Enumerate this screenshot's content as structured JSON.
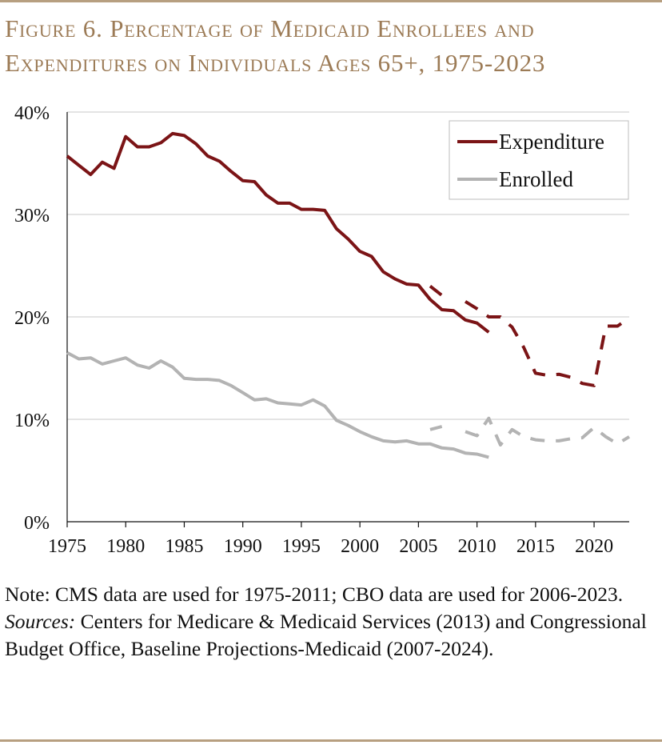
{
  "figure": {
    "title_line1": "Figure 6. Percentage of Medicaid Enrollees and",
    "title_line2": "Expenditures on Individuals Ages 65+, 1975-2023",
    "note": "Note: CMS data are used for 1975-2011; CBO data are used for 2006-2023.",
    "sources_label": "Sources:",
    "sources_text": " Centers for Medicare & Medicaid Services (2013) and Congressional Budget Office, Baseline Projections-Medicaid (2007-2024).",
    "colors": {
      "expenditure": "#7b1416",
      "enrolled": "#b3b3b3",
      "title": "#9c7b56",
      "rule": "#b79f80",
      "grid": "#c8c8c8"
    }
  },
  "chart_data": {
    "type": "line",
    "ylim": [
      0,
      40
    ],
    "xlim": [
      1975,
      2023
    ],
    "yticks": [
      0,
      10,
      20,
      30,
      40
    ],
    "ytick_labels": [
      "0%",
      "10%",
      "20%",
      "30%",
      "40%"
    ],
    "xticks": [
      1975,
      1980,
      1985,
      1990,
      1995,
      2000,
      2005,
      2010,
      2015,
      2020
    ],
    "xtick_labels": [
      "1975",
      "1980",
      "1985",
      "1990",
      "1995",
      "2000",
      "2005",
      "2010",
      "2015",
      "2020"
    ],
    "legend": {
      "position": "top-right",
      "entries": [
        "Expenditure",
        "Enrolled"
      ]
    },
    "series": [
      {
        "name": "Expenditure",
        "source": "CMS",
        "style": "solid",
        "x": [
          1975,
          1976,
          1977,
          1978,
          1979,
          1980,
          1981,
          1982,
          1983,
          1984,
          1985,
          1986,
          1987,
          1988,
          1989,
          1990,
          1991,
          1992,
          1993,
          1994,
          1995,
          1996,
          1997,
          1998,
          1999,
          2000,
          2001,
          2002,
          2003,
          2004,
          2005,
          2006,
          2007,
          2008,
          2009,
          2010,
          2011
        ],
        "values": [
          35.7,
          34.8,
          33.9,
          35.1,
          34.5,
          37.6,
          36.6,
          36.6,
          37.0,
          37.9,
          37.7,
          36.9,
          35.7,
          35.2,
          34.2,
          33.3,
          33.2,
          31.9,
          31.1,
          31.1,
          30.5,
          30.5,
          30.4,
          28.6,
          27.6,
          26.4,
          25.9,
          24.4,
          23.7,
          23.2,
          23.1,
          21.7,
          20.7,
          20.6,
          19.7,
          19.4,
          18.5
        ]
      },
      {
        "name": "Expenditure",
        "source": "CBO",
        "style": "dashed",
        "x": [
          2006,
          2007,
          2008,
          2009,
          2010,
          2011,
          2012,
          2013,
          2014,
          2015,
          2016,
          2017,
          2018,
          2019,
          2020,
          2021,
          2022,
          2023
        ],
        "values": [
          23.0,
          22.1,
          null,
          21.5,
          20.8,
          20.0,
          20.0,
          19.0,
          17.0,
          14.5,
          14.3,
          14.4,
          14.1,
          13.5,
          13.3,
          19.1,
          19.1,
          19.9
        ]
      },
      {
        "name": "Enrolled",
        "source": "CMS",
        "style": "solid",
        "x": [
          1975,
          1976,
          1977,
          1978,
          1979,
          1980,
          1981,
          1982,
          1983,
          1984,
          1985,
          1986,
          1987,
          1988,
          1989,
          1990,
          1991,
          1992,
          1993,
          1994,
          1995,
          1996,
          1997,
          1998,
          1999,
          2000,
          2001,
          2002,
          2003,
          2004,
          2005,
          2006,
          2007,
          2008,
          2009,
          2010,
          2011
        ],
        "values": [
          16.5,
          15.9,
          16.0,
          15.4,
          15.7,
          16.0,
          15.3,
          15.0,
          15.7,
          15.1,
          14.0,
          13.9,
          13.9,
          13.8,
          13.3,
          12.6,
          11.9,
          12.0,
          11.6,
          11.5,
          11.4,
          11.9,
          11.3,
          9.9,
          9.4,
          8.8,
          8.3,
          7.9,
          7.8,
          7.9,
          7.6,
          7.6,
          7.2,
          7.1,
          6.7,
          6.6,
          6.3
        ]
      },
      {
        "name": "Enrolled",
        "source": "CBO",
        "style": "dashed",
        "x": [
          2006,
          2007,
          2008,
          2009,
          2010,
          2011,
          2012,
          2013,
          2014,
          2015,
          2016,
          2017,
          2018,
          2019,
          2020,
          2021,
          2022,
          2023
        ],
        "values": [
          9.0,
          9.3,
          null,
          8.8,
          8.4,
          10.1,
          7.5,
          9.0,
          8.3,
          8.0,
          7.9,
          7.9,
          8.1,
          8.2,
          9.2,
          8.3,
          7.6,
          8.3
        ]
      }
    ]
  }
}
